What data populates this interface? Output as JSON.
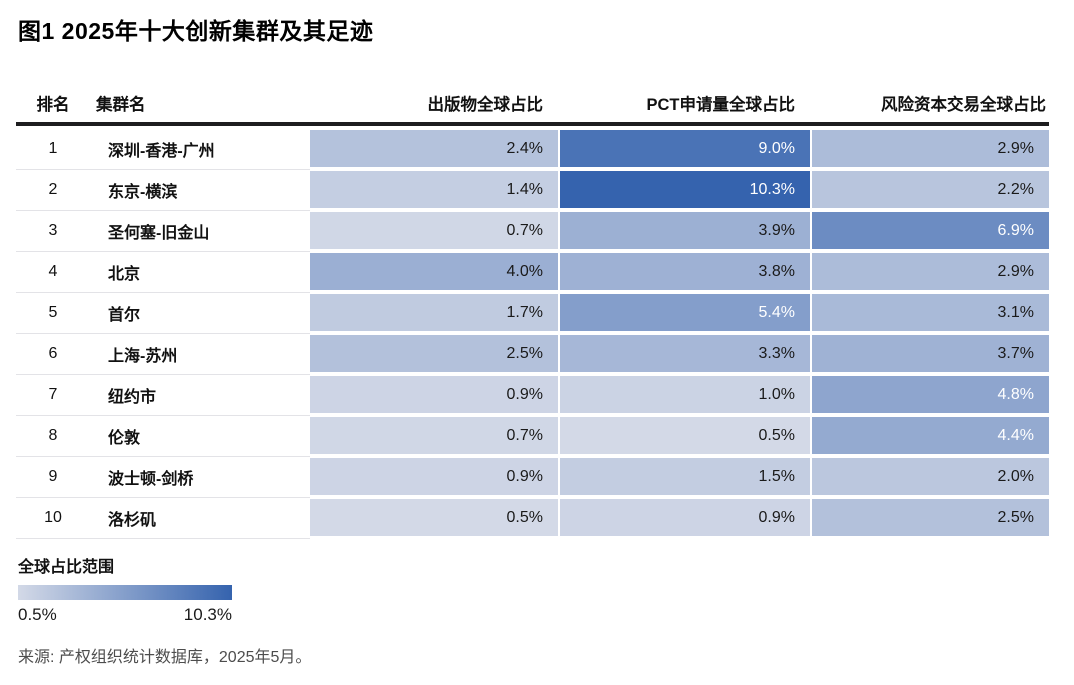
{
  "title": "图1 2025年十大创新集群及其足迹",
  "table": {
    "headers": {
      "rank": "排名",
      "cluster": "集群名",
      "publications": "出版物全球占比",
      "pct": "PCT申请量全球占比",
      "vc": "风险资本交易全球占比"
    },
    "rows": [
      {
        "rank": "1",
        "cluster": "深圳-香港-广州",
        "publications": "2.4%",
        "pct": "9.0%",
        "vc": "2.9%"
      },
      {
        "rank": "2",
        "cluster": "东京-横滨",
        "publications": "1.4%",
        "pct": "10.3%",
        "vc": "2.2%"
      },
      {
        "rank": "3",
        "cluster": "圣何塞-旧金山",
        "publications": "0.7%",
        "pct": "3.9%",
        "vc": "6.9%"
      },
      {
        "rank": "4",
        "cluster": "北京",
        "publications": "4.0%",
        "pct": "3.8%",
        "vc": "2.9%"
      },
      {
        "rank": "5",
        "cluster": "首尔",
        "publications": "1.7%",
        "pct": "5.4%",
        "vc": "3.1%"
      },
      {
        "rank": "6",
        "cluster": "上海-苏州",
        "publications": "2.5%",
        "pct": "3.3%",
        "vc": "3.7%"
      },
      {
        "rank": "7",
        "cluster": "纽约市",
        "publications": "0.9%",
        "pct": "1.0%",
        "vc": "4.8%"
      },
      {
        "rank": "8",
        "cluster": "伦敦",
        "publications": "0.7%",
        "pct": "0.5%",
        "vc": "4.4%"
      },
      {
        "rank": "9",
        "cluster": "波士顿-剑桥",
        "publications": "0.9%",
        "pct": "1.5%",
        "vc": "2.0%"
      },
      {
        "rank": "10",
        "cluster": "洛杉矶",
        "publications": "0.5%",
        "pct": "0.9%",
        "vc": "2.5%"
      }
    ]
  },
  "legend": {
    "label": "全球占比范围",
    "min_label": "0.5%",
    "max_label": "10.3%"
  },
  "source": "来源: 产权组织统计数据库，2025年5月。",
  "chart_data": {
    "type": "heatmap",
    "title": "图1 2025年十大创新集群及其足迹",
    "categories": [
      "深圳-香港-广州",
      "东京-横滨",
      "圣何塞-旧金山",
      "北京",
      "首尔",
      "上海-苏州",
      "纽约市",
      "伦敦",
      "波士顿-剑桥",
      "洛杉矶"
    ],
    "ranks": [
      1,
      2,
      3,
      4,
      5,
      6,
      7,
      8,
      9,
      10
    ],
    "series": [
      {
        "name": "出版物全球占比",
        "values": [
          2.4,
          1.4,
          0.7,
          4.0,
          1.7,
          2.5,
          0.9,
          0.7,
          0.9,
          0.5
        ]
      },
      {
        "name": "PCT申请量全球占比",
        "values": [
          9.0,
          10.3,
          3.9,
          3.8,
          5.4,
          3.3,
          1.0,
          0.5,
          1.5,
          0.9
        ]
      },
      {
        "name": "风险资本交易全球占比",
        "values": [
          2.9,
          2.2,
          6.9,
          2.9,
          3.1,
          3.7,
          4.8,
          4.4,
          2.0,
          2.5
        ]
      }
    ],
    "unit": "%",
    "scale": {
      "min": 0.5,
      "max": 10.3,
      "min_color": "#d3d9e7",
      "max_color": "#3563ae",
      "white_text_min": 4.4,
      "legend_label": "全球占比范围"
    },
    "source": "来源: 产权组织统计数据库，2025年5月。"
  }
}
